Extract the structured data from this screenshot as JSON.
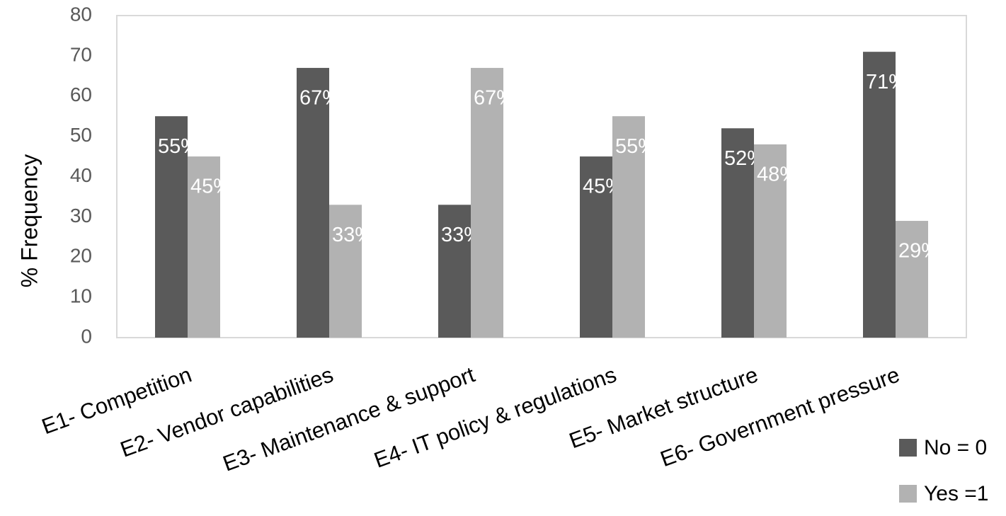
{
  "chart_data": {
    "type": "bar",
    "y_label": "% Frequency",
    "categories": [
      "E1- Competition",
      "E2- Vendor capabilities",
      "E3- Maintenance & support",
      "E4- IT policy & regulations",
      "E5- Market structure",
      "E6- Government pressure"
    ],
    "series": [
      {
        "name": "No = 0",
        "color": "#5a5a5a",
        "values": [
          55,
          67,
          33,
          45,
          52,
          71
        ],
        "value_labels": [
          "55%",
          "67%",
          "33%",
          "45%",
          "52%",
          "71%"
        ]
      },
      {
        "name": "Yes =1",
        "color": "#b2b2b2",
        "values": [
          45,
          33,
          67,
          55,
          48,
          29
        ],
        "value_labels": [
          "45%",
          "33%",
          "67%",
          "55%",
          "48%",
          "29%"
        ]
      }
    ],
    "ylim": [
      0,
      80
    ],
    "yticks": [
      0,
      10,
      20,
      30,
      40,
      50,
      60,
      70,
      80
    ],
    "grid": false,
    "legend": "bottom-right"
  }
}
